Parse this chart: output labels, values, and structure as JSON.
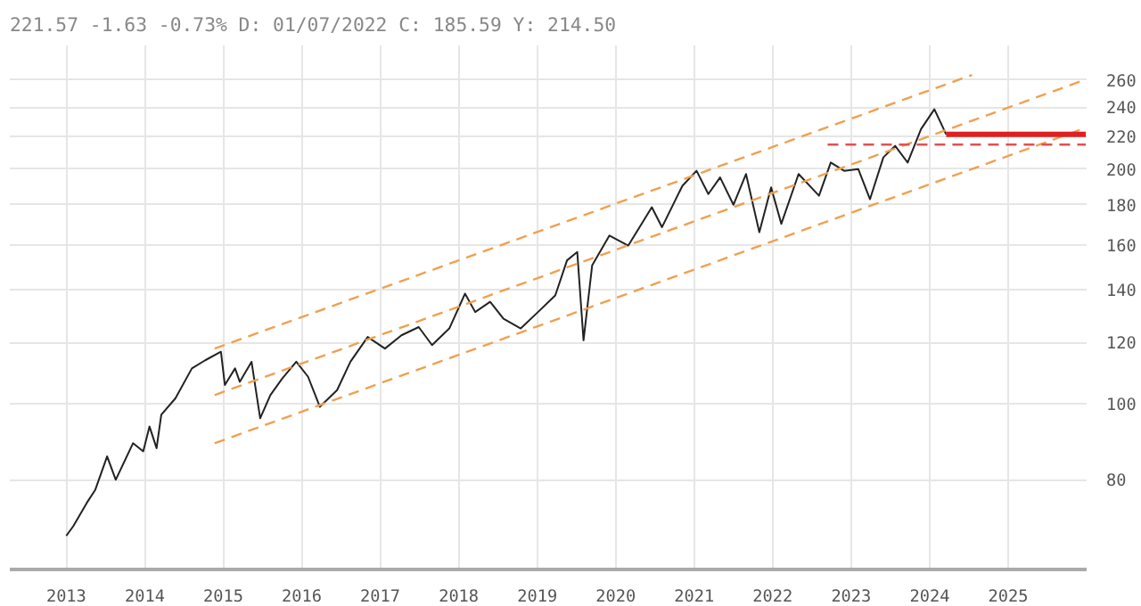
{
  "chart_data": {
    "type": "line",
    "annotations": [
      "221.57 -1.63 -0.73% D: 01/07/2022 C: 185.59 Y: 214.50"
    ],
    "log": "y",
    "grid": true,
    "xlim": [
      2012.28,
      2026.0
    ],
    "ylim": [
      61.4,
      288
    ],
    "xticks": [
      2013,
      2014,
      2015,
      2016,
      2017,
      2018,
      2019,
      2020,
      2021,
      2022,
      2023,
      2024,
      2025
    ],
    "yticks": [
      80,
      100,
      120,
      140,
      160,
      180,
      200,
      220,
      240,
      260
    ],
    "series": [
      {
        "color": "#222222",
        "line_style": "solid",
        "x": [
          2013.0,
          2013.09,
          2013.26,
          2013.37,
          2013.52,
          2013.63,
          2013.85,
          2013.98,
          2014.06,
          2014.15,
          2014.21,
          2014.39,
          2014.6,
          2014.77,
          2014.97,
          2015.02,
          2015.15,
          2015.21,
          2015.36,
          2015.47,
          2015.6,
          2015.75,
          2015.93,
          2016.08,
          2016.23,
          2016.45,
          2016.62,
          2016.84,
          2017.06,
          2017.27,
          2017.49,
          2017.66,
          2017.88,
          2018.08,
          2018.21,
          2018.4,
          2018.57,
          2018.79,
          2019.01,
          2019.23,
          2019.38,
          2019.51,
          2019.59,
          2019.7,
          2019.92,
          2020.16,
          2020.46,
          2020.59,
          2020.85,
          2021.03,
          2021.18,
          2021.33,
          2021.5,
          2021.66,
          2021.83,
          2021.98,
          2022.11,
          2022.33,
          2022.59,
          2022.74,
          2022.91,
          2023.09,
          2023.24,
          2023.41,
          2023.56,
          2023.72,
          2023.89,
          2024.06,
          2024.17,
          2024.21
        ],
        "values": [
          67.8,
          69.8,
          74.7,
          77.7,
          85.7,
          80.0,
          89.1,
          87.0,
          93.6,
          87.8,
          96.9,
          101.7,
          111.1,
          113.8,
          116.7,
          105.8,
          111.1,
          106.8,
          113.3,
          95.9,
          102.7,
          107.8,
          113.3,
          108.4,
          99.2,
          104.2,
          113.3,
          121.9,
          117.8,
          122.5,
          125.5,
          119.0,
          125.0,
          138.5,
          131.2,
          135.2,
          128.6,
          125.0,
          131.2,
          137.8,
          152.8,
          156.6,
          120.7,
          150.6,
          164.4,
          159.6,
          178.7,
          168.5,
          190.4,
          199.0,
          185.8,
          195.1,
          180.0,
          197.1,
          166.0,
          189.5,
          170.2,
          197.1,
          184.9,
          203.9,
          199.0,
          200.0,
          183.0,
          207.0,
          214.2,
          203.9,
          225.0,
          238.6,
          226.1,
          221.6
        ]
      },
      {
        "color": "#f0a050",
        "line_style": "dashed",
        "x": [
          2014.89,
          2024.54
        ],
        "values": [
          117.8,
          264
        ]
      },
      {
        "color": "#f0a050",
        "line_style": "dashed",
        "x": [
          2014.89,
          2025.99
        ],
        "values": [
          102.7,
          260.5
        ]
      },
      {
        "color": "#f0a050",
        "line_style": "dashed",
        "x": [
          2014.89,
          2025.99
        ],
        "values": [
          89.1,
          225.9
        ]
      },
      {
        "color": "#e02020",
        "line_style": "solid",
        "x": [
          2024.21,
          2025.99
        ],
        "values": [
          221.6,
          221.6
        ]
      },
      {
        "color": "#e05050",
        "line_style": "dashed",
        "x": [
          2022.7,
          2025.99
        ],
        "values": [
          215,
          215
        ]
      }
    ]
  }
}
